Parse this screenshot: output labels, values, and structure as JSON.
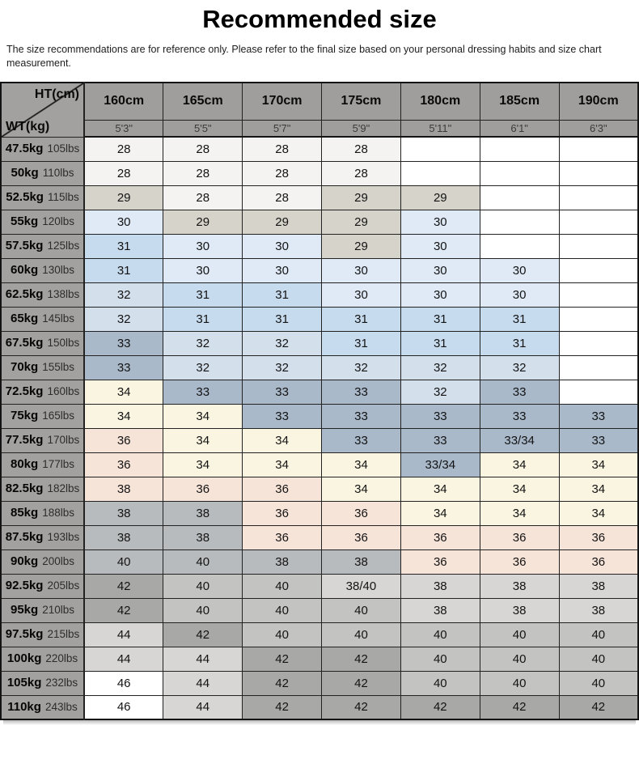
{
  "title": "Recommended size",
  "subtitle": "The size recommendations are for reference only. Please refer to the final size based on your personal dressing habits and size chart measurement.",
  "palette": {
    "W": "#ffffff",
    "N": "#f4f3f1",
    "T": "#d6d3ca",
    "B1": "#dfeaf6",
    "B2": "#c7dbee",
    "B3": "#d3dfeb",
    "S": "#a9b9ca",
    "C": "#faf5e1",
    "P": "#f7e4d9",
    "G": "#b8bbbd",
    "MG": "#c3c4c2",
    "LG": "#d7d6d4",
    "DG": "#a8a9a7"
  },
  "chart_data": {
    "type": "table",
    "title": "Recommended size",
    "corner_ht": "HT(cm)",
    "corner_wt": "WT(kg)",
    "columns_cm": [
      "160cm",
      "165cm",
      "170cm",
      "175cm",
      "180cm",
      "185cm",
      "190cm"
    ],
    "columns_ftin": [
      "5'3\"",
      "5'5\"",
      "5'7\"",
      "5'9\"",
      "5'11\"",
      "6'1\"",
      "6'3\""
    ],
    "rows": [
      {
        "kg": "47.5kg",
        "lbs": "105lbs",
        "values": [
          "28",
          "28",
          "28",
          "28",
          "",
          "",
          ""
        ],
        "colors": [
          "N",
          "N",
          "N",
          "N",
          "W",
          "W",
          "W"
        ]
      },
      {
        "kg": "50kg",
        "lbs": "110lbs",
        "values": [
          "28",
          "28",
          "28",
          "28",
          "",
          "",
          ""
        ],
        "colors": [
          "N",
          "N",
          "N",
          "N",
          "W",
          "W",
          "W"
        ]
      },
      {
        "kg": "52.5kg",
        "lbs": "115lbs",
        "values": [
          "29",
          "28",
          "28",
          "29",
          "29",
          "",
          ""
        ],
        "colors": [
          "T",
          "N",
          "N",
          "T",
          "T",
          "W",
          "W"
        ]
      },
      {
        "kg": "55kg",
        "lbs": "120lbs",
        "values": [
          "30",
          "29",
          "29",
          "29",
          "30",
          "",
          ""
        ],
        "colors": [
          "B1",
          "T",
          "T",
          "T",
          "B1",
          "W",
          "W"
        ]
      },
      {
        "kg": "57.5kg",
        "lbs": "125lbs",
        "values": [
          "31",
          "30",
          "30",
          "29",
          "30",
          "",
          ""
        ],
        "colors": [
          "B2",
          "B1",
          "B1",
          "T",
          "B1",
          "W",
          "W"
        ]
      },
      {
        "kg": "60kg",
        "lbs": "130lbs",
        "values": [
          "31",
          "30",
          "30",
          "30",
          "30",
          "30",
          ""
        ],
        "colors": [
          "B2",
          "B1",
          "B1",
          "B1",
          "B1",
          "B1",
          "W"
        ]
      },
      {
        "kg": "62.5kg",
        "lbs": "138lbs",
        "values": [
          "32",
          "31",
          "31",
          "30",
          "30",
          "30",
          ""
        ],
        "colors": [
          "B3",
          "B2",
          "B2",
          "B1",
          "B1",
          "B1",
          "W"
        ]
      },
      {
        "kg": "65kg",
        "lbs": "145lbs",
        "values": [
          "32",
          "31",
          "31",
          "31",
          "31",
          "31",
          ""
        ],
        "colors": [
          "B3",
          "B2",
          "B2",
          "B2",
          "B2",
          "B2",
          "W"
        ]
      },
      {
        "kg": "67.5kg",
        "lbs": "150lbs",
        "values": [
          "33",
          "32",
          "32",
          "31",
          "31",
          "31",
          ""
        ],
        "colors": [
          "S",
          "B3",
          "B3",
          "B2",
          "B2",
          "B2",
          "W"
        ]
      },
      {
        "kg": "70kg",
        "lbs": "155lbs",
        "values": [
          "33",
          "32",
          "32",
          "32",
          "32",
          "32",
          ""
        ],
        "colors": [
          "S",
          "B3",
          "B3",
          "B3",
          "B3",
          "B3",
          "W"
        ]
      },
      {
        "kg": "72.5kg",
        "lbs": "160lbs",
        "values": [
          "34",
          "33",
          "33",
          "33",
          "32",
          "33",
          ""
        ],
        "colors": [
          "C",
          "S",
          "S",
          "S",
          "B3",
          "S",
          "W"
        ]
      },
      {
        "kg": "75kg",
        "lbs": "165lbs",
        "values": [
          "34",
          "34",
          "33",
          "33",
          "33",
          "33",
          "33"
        ],
        "colors": [
          "C",
          "C",
          "S",
          "S",
          "S",
          "S",
          "S"
        ]
      },
      {
        "kg": "77.5kg",
        "lbs": "170lbs",
        "values": [
          "36",
          "34",
          "34",
          "33",
          "33",
          "33/34",
          "33"
        ],
        "colors": [
          "P",
          "C",
          "C",
          "S",
          "S",
          "S",
          "S"
        ]
      },
      {
        "kg": "80kg",
        "lbs": "177lbs",
        "values": [
          "36",
          "34",
          "34",
          "34",
          "33/34",
          "34",
          "34"
        ],
        "colors": [
          "P",
          "C",
          "C",
          "C",
          "S",
          "C",
          "C"
        ]
      },
      {
        "kg": "82.5kg",
        "lbs": "182lbs",
        "values": [
          "38",
          "36",
          "36",
          "34",
          "34",
          "34",
          "34"
        ],
        "colors": [
          "P",
          "P",
          "P",
          "C",
          "C",
          "C",
          "C"
        ]
      },
      {
        "kg": "85kg",
        "lbs": "188lbs",
        "values": [
          "38",
          "38",
          "36",
          "36",
          "34",
          "34",
          "34"
        ],
        "colors": [
          "G",
          "G",
          "P",
          "P",
          "C",
          "C",
          "C"
        ]
      },
      {
        "kg": "87.5kg",
        "lbs": "193lbs",
        "values": [
          "38",
          "38",
          "36",
          "36",
          "36",
          "36",
          "36"
        ],
        "colors": [
          "G",
          "G",
          "P",
          "P",
          "P",
          "P",
          "P"
        ]
      },
      {
        "kg": "90kg",
        "lbs": "200lbs",
        "values": [
          "40",
          "40",
          "38",
          "38",
          "36",
          "36",
          "36"
        ],
        "colors": [
          "G",
          "G",
          "G",
          "G",
          "P",
          "P",
          "P"
        ]
      },
      {
        "kg": "92.5kg",
        "lbs": "205lbs",
        "values": [
          "42",
          "40",
          "40",
          "38/40",
          "38",
          "38",
          "38"
        ],
        "colors": [
          "DG",
          "MG",
          "MG",
          "LG",
          "LG",
          "LG",
          "LG"
        ]
      },
      {
        "kg": "95kg",
        "lbs": "210lbs",
        "values": [
          "42",
          "40",
          "40",
          "40",
          "38",
          "38",
          "38"
        ],
        "colors": [
          "DG",
          "MG",
          "MG",
          "MG",
          "LG",
          "LG",
          "LG"
        ]
      },
      {
        "kg": "97.5kg",
        "lbs": "215lbs",
        "values": [
          "44",
          "42",
          "40",
          "40",
          "40",
          "40",
          "40"
        ],
        "colors": [
          "LG",
          "DG",
          "MG",
          "MG",
          "MG",
          "MG",
          "MG"
        ]
      },
      {
        "kg": "100kg",
        "lbs": "220lbs",
        "values": [
          "44",
          "44",
          "42",
          "42",
          "40",
          "40",
          "40"
        ],
        "colors": [
          "LG",
          "LG",
          "DG",
          "DG",
          "MG",
          "MG",
          "MG"
        ]
      },
      {
        "kg": "105kg",
        "lbs": "232lbs",
        "values": [
          "46",
          "44",
          "42",
          "42",
          "40",
          "40",
          "40"
        ],
        "colors": [
          "W",
          "LG",
          "DG",
          "DG",
          "MG",
          "MG",
          "MG"
        ]
      },
      {
        "kg": "110kg",
        "lbs": "243lbs",
        "values": [
          "46",
          "44",
          "42",
          "42",
          "42",
          "42",
          "42"
        ],
        "colors": [
          "W",
          "LG",
          "DG",
          "DG",
          "DG",
          "DG",
          "DG"
        ]
      }
    ]
  }
}
